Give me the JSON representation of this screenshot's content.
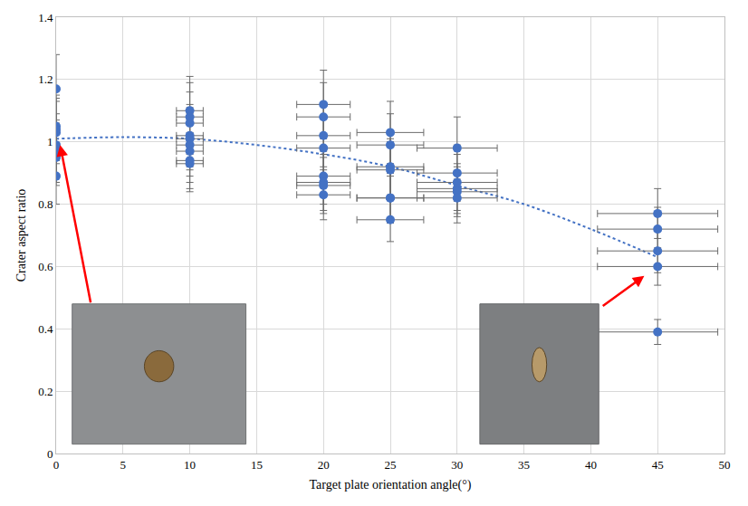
{
  "chart_data": {
    "type": "scatter",
    "x_label": "Target plate orientation angle(°)",
    "y_label": "Crater aspect ratio",
    "xlim": [
      0,
      50
    ],
    "xticks": [
      0,
      5,
      10,
      15,
      20,
      25,
      30,
      35,
      40,
      45,
      50
    ],
    "ylim": [
      0,
      1.4
    ],
    "yticks": [
      0,
      0.2,
      0.4,
      0.6,
      0.8,
      1,
      1.2,
      1.4
    ],
    "grid": true,
    "series": [
      {
        "type": "line",
        "line_style": "dotted",
        "color": "#4472c4",
        "x": [
          0,
          5,
          10,
          15,
          20,
          25,
          30,
          35,
          40,
          45
        ],
        "values": [
          1.01,
          1.015,
          1.01,
          0.99,
          0.96,
          0.92,
          0.86,
          0.8,
          0.72,
          0.63
        ]
      },
      {
        "type": "scatter",
        "marker": "circle",
        "color": "#4472c4",
        "x": [
          0,
          0,
          0,
          0,
          0,
          0,
          0,
          0,
          0,
          10,
          10,
          10,
          10,
          10,
          10,
          10,
          10,
          10,
          20,
          20,
          20,
          20,
          20,
          20,
          20,
          20,
          25,
          25,
          25,
          25,
          25,
          25,
          25,
          30,
          30,
          30,
          30,
          30,
          30,
          45,
          45,
          45,
          45,
          45
        ],
        "values": [
          1.17,
          1.05,
          1.04,
          1.03,
          0.99,
          0.97,
          0.96,
          0.95,
          0.89,
          1.1,
          1.08,
          1.06,
          1.02,
          1.01,
          0.99,
          0.97,
          0.94,
          0.93,
          1.12,
          1.08,
          1.02,
          0.98,
          0.89,
          0.87,
          0.86,
          0.83,
          1.03,
          0.99,
          0.92,
          0.91,
          0.82,
          0.82,
          0.75,
          0.98,
          0.9,
          0.87,
          0.85,
          0.84,
          0.82,
          0.77,
          0.72,
          0.65,
          0.6,
          0.39
        ],
        "x_error": [
          0,
          0,
          0,
          0,
          0,
          0,
          0,
          0,
          0,
          1,
          1,
          1,
          1,
          1,
          1,
          1,
          1,
          1,
          2,
          2,
          2,
          2,
          2,
          2,
          2,
          2,
          2.5,
          2.5,
          2.5,
          2.5,
          2.5,
          2.5,
          2.5,
          3,
          3,
          3,
          3,
          3,
          3,
          4.5,
          4.5,
          4.5,
          4.5,
          4.5
        ],
        "y_error": [
          0.11,
          0.1,
          0.1,
          0.1,
          0.1,
          0.1,
          0.09,
          0.09,
          0.09,
          0.11,
          0.11,
          0.1,
          0.1,
          0.1,
          0.1,
          0.1,
          0.09,
          0.09,
          0.11,
          0.11,
          0.1,
          0.1,
          0.09,
          0.09,
          0.09,
          0.08,
          0.1,
          0.1,
          0.09,
          0.09,
          0.08,
          0.08,
          0.07,
          0.1,
          0.09,
          0.09,
          0.08,
          0.08,
          0.08,
          0.08,
          0.07,
          0.07,
          0.06,
          0.04
        ]
      }
    ]
  }
}
